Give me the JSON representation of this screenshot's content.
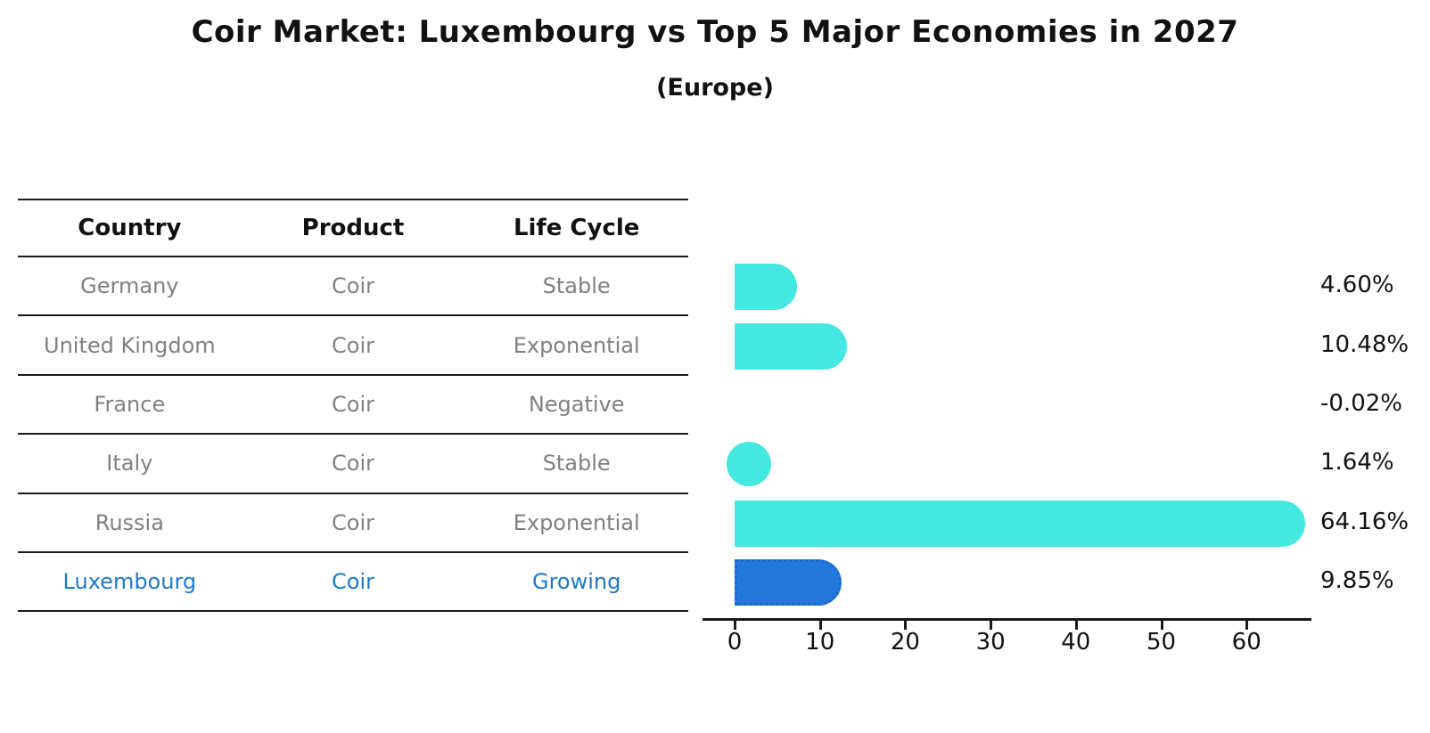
{
  "title": "Coir Market: Luxembourg vs Top 5 Major Economies in 2027",
  "subtitle": "(Europe)",
  "table": {
    "headers": [
      "Country",
      "Product",
      "Life Cycle"
    ],
    "rows": [
      {
        "country": "Germany",
        "product": "Coir",
        "life_cycle": "Stable",
        "highlight": false
      },
      {
        "country": "United Kingdom",
        "product": "Coir",
        "life_cycle": "Exponential",
        "highlight": false
      },
      {
        "country": "France",
        "product": "Coir",
        "life_cycle": "Negative",
        "highlight": false
      },
      {
        "country": "Italy",
        "product": "Coir",
        "life_cycle": "Stable",
        "highlight": false
      },
      {
        "country": "Russia",
        "product": "Coir",
        "life_cycle": "Exponential",
        "highlight": false
      },
      {
        "country": "Luxembourg",
        "product": "Coir",
        "life_cycle": "Growing",
        "highlight": true
      }
    ]
  },
  "chart_data": {
    "type": "bar",
    "orientation": "horizontal",
    "title": "Coir Market: Luxembourg vs Top 5 Major Economies in 2027 (Europe)",
    "categories": [
      "Germany",
      "United Kingdom",
      "France",
      "Italy",
      "Russia",
      "Luxembourg"
    ],
    "values": [
      4.6,
      10.48,
      -0.02,
      1.64,
      64.16,
      9.85
    ],
    "value_labels": [
      "4.60%",
      "10.48%",
      "-0.02%",
      "1.64%",
      "64.16%",
      "9.85%"
    ],
    "x_ticks": [
      0,
      10,
      20,
      30,
      40,
      50,
      60
    ],
    "xlim": [
      0,
      67.5
    ],
    "grid": false,
    "legend": "none",
    "highlight_index": 5,
    "bar_color": "#45E8E0",
    "highlight_bar_color": "#2478DB",
    "highlight_bar_edge_color": "#1B66C9",
    "highlight_text_color": "#1F78C8",
    "text_color": "#111111",
    "muted_text_color": "#808080"
  }
}
